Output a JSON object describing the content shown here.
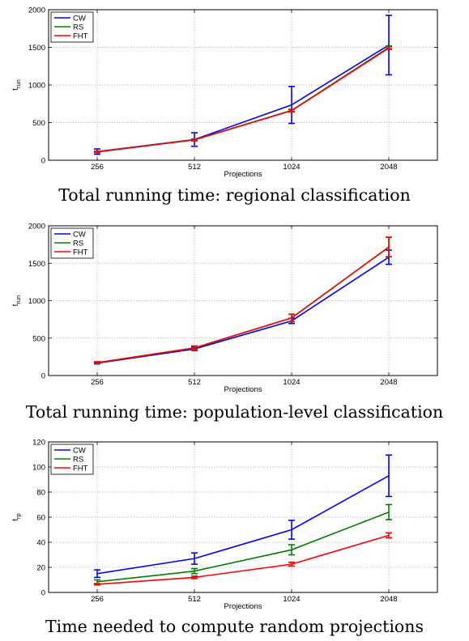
{
  "chart_data": [
    {
      "type": "line",
      "categories": [
        "256",
        "512",
        "1024",
        "2048"
      ],
      "xlabel": "Projections",
      "ylabel": "t_run",
      "ylim": [
        0,
        2000
      ],
      "yticks": [
        0,
        500,
        1000,
        1500,
        2000
      ],
      "grid": true,
      "legend": "top-left",
      "series": [
        {
          "name": "CW",
          "color": "#0000ff",
          "values": [
            115,
            275,
            735,
            1530
          ],
          "err": [
            35,
            90,
            245,
            395
          ]
        },
        {
          "name": "RS",
          "color": "#008000",
          "values": [
            112,
            272,
            662,
            1500
          ],
          "err": [
            8,
            12,
            15,
            18
          ]
        },
        {
          "name": "FHT",
          "color": "#ff0000",
          "values": [
            110,
            270,
            658,
            1490
          ],
          "err": [
            8,
            12,
            15,
            18
          ]
        }
      ],
      "caption": "Total running time: regional classification"
    },
    {
      "type": "line",
      "categories": [
        "256",
        "512",
        "1024",
        "2048"
      ],
      "xlabel": "Projections",
      "ylabel": "t_run",
      "ylim": [
        0,
        2000
      ],
      "yticks": [
        0,
        500,
        1000,
        1500,
        2000
      ],
      "grid": true,
      "legend": "top-left",
      "series": [
        {
          "name": "CW",
          "color": "#0000ff",
          "values": [
            165,
            355,
            730,
            1580
          ],
          "err": [
            10,
            20,
            35,
            95
          ]
        },
        {
          "name": "RS",
          "color": "#008000",
          "values": [
            172,
            368,
            768,
            1715
          ],
          "err": [
            12,
            25,
            50,
            130
          ]
        },
        {
          "name": "FHT",
          "color": "#ff0000",
          "values": [
            172,
            370,
            770,
            1718
          ],
          "err": [
            12,
            25,
            50,
            130
          ]
        }
      ],
      "caption": "Total running time: population-level classification"
    },
    {
      "type": "line",
      "categories": [
        "256",
        "512",
        "1024",
        "2048"
      ],
      "xlabel": "Projections",
      "ylabel": "t_rp",
      "ylim": [
        0,
        120
      ],
      "yticks": [
        0,
        20,
        40,
        60,
        80,
        100,
        120
      ],
      "grid": true,
      "legend": "top-left",
      "series": [
        {
          "name": "CW",
          "color": "#0000ff",
          "values": [
            15,
            27,
            50,
            93
          ],
          "err": [
            3,
            4.5,
            7.5,
            16.5
          ]
        },
        {
          "name": "RS",
          "color": "#008000",
          "values": [
            8.5,
            17,
            34,
            64
          ],
          "err": [
            1.5,
            2,
            4,
            6
          ]
        },
        {
          "name": "FHT",
          "color": "#ff0000",
          "values": [
            6.5,
            12,
            22.5,
            45.5
          ],
          "err": [
            0.5,
            1,
            1.5,
            2
          ]
        }
      ],
      "caption": "Time needed to compute random projections"
    }
  ]
}
